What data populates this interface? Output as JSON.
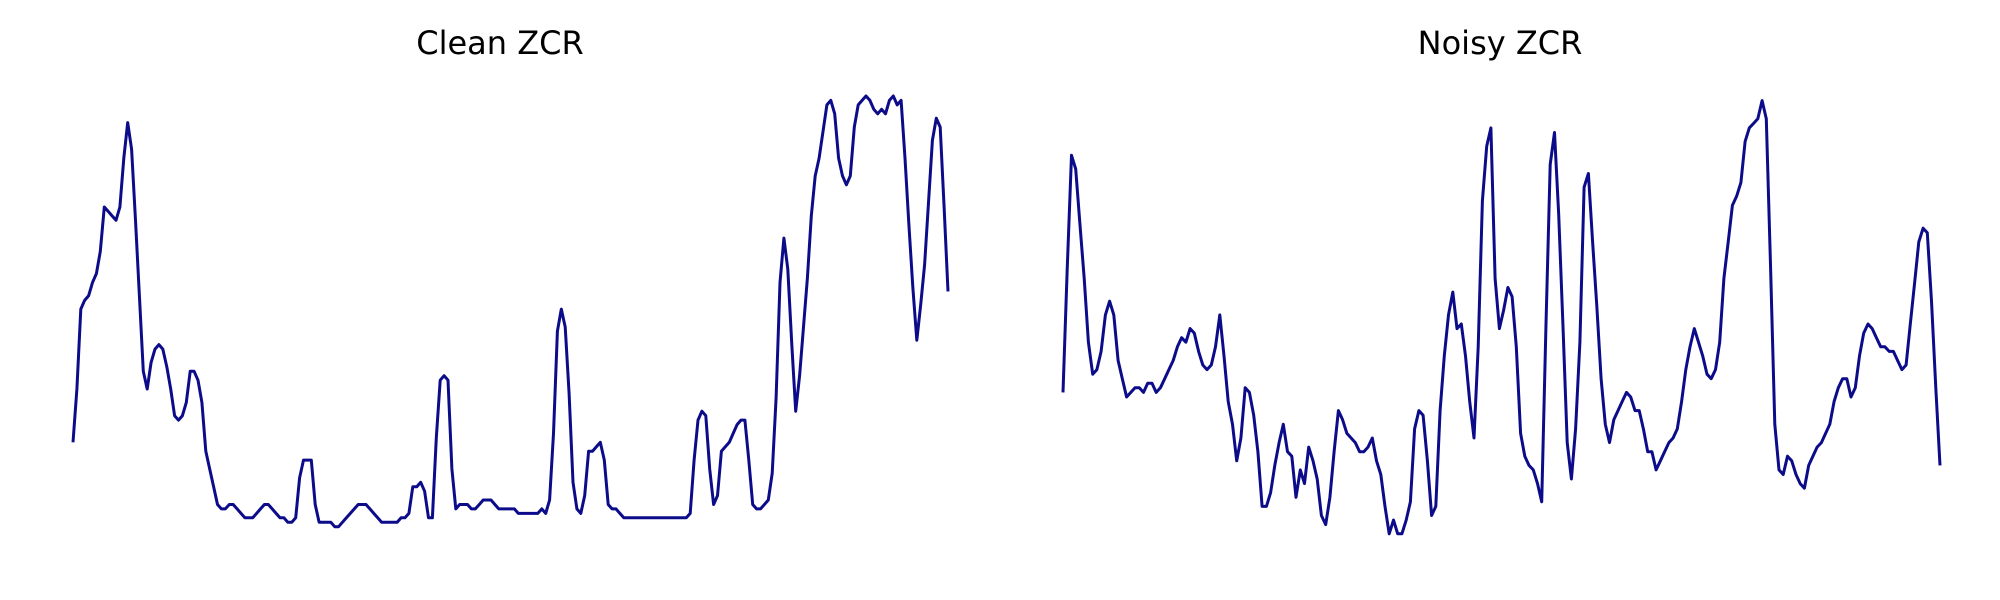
{
  "chart_data": [
    {
      "type": "line",
      "title": "Clean ZCR",
      "ylim": [
        0,
        1
      ],
      "grid": false,
      "axes_visible": false,
      "line_color": "#0c0c8a",
      "series": [
        {
          "values": [
            0.22,
            0.34,
            0.52,
            0.54,
            0.55,
            0.58,
            0.6,
            0.65,
            0.75,
            0.74,
            0.73,
            0.72,
            0.75,
            0.86,
            0.94,
            0.88,
            0.72,
            0.55,
            0.38,
            0.34,
            0.4,
            0.43,
            0.44,
            0.43,
            0.39,
            0.34,
            0.28,
            0.27,
            0.28,
            0.31,
            0.38,
            0.38,
            0.36,
            0.31,
            0.2,
            0.16,
            0.12,
            0.08,
            0.07,
            0.07,
            0.08,
            0.08,
            0.07,
            0.06,
            0.05,
            0.05,
            0.05,
            0.06,
            0.07,
            0.08,
            0.08,
            0.07,
            0.06,
            0.05,
            0.05,
            0.04,
            0.04,
            0.05,
            0.14,
            0.18,
            0.18,
            0.18,
            0.08,
            0.04,
            0.04,
            0.04,
            0.04,
            0.03,
            0.03,
            0.04,
            0.05,
            0.06,
            0.07,
            0.08,
            0.08,
            0.08,
            0.07,
            0.06,
            0.05,
            0.04,
            0.04,
            0.04,
            0.04,
            0.04,
            0.05,
            0.05,
            0.06,
            0.12,
            0.12,
            0.13,
            0.11,
            0.05,
            0.05,
            0.23,
            0.36,
            0.37,
            0.36,
            0.16,
            0.07,
            0.08,
            0.08,
            0.08,
            0.07,
            0.07,
            0.08,
            0.09,
            0.09,
            0.09,
            0.08,
            0.07,
            0.07,
            0.07,
            0.07,
            0.07,
            0.06,
            0.06,
            0.06,
            0.06,
            0.06,
            0.06,
            0.07,
            0.06,
            0.09,
            0.24,
            0.47,
            0.52,
            0.48,
            0.33,
            0.13,
            0.07,
            0.06,
            0.1,
            0.2,
            0.2,
            0.21,
            0.22,
            0.18,
            0.08,
            0.07,
            0.07,
            0.06,
            0.05,
            0.05,
            0.05,
            0.05,
            0.05,
            0.05,
            0.05,
            0.05,
            0.05,
            0.05,
            0.05,
            0.05,
            0.05,
            0.05,
            0.05,
            0.05,
            0.05,
            0.06,
            0.18,
            0.27,
            0.29,
            0.28,
            0.16,
            0.08,
            0.1,
            0.2,
            0.21,
            0.22,
            0.24,
            0.26,
            0.27,
            0.27,
            0.18,
            0.08,
            0.07,
            0.07,
            0.08,
            0.09,
            0.15,
            0.32,
            0.58,
            0.68,
            0.61,
            0.44,
            0.29,
            0.37,
            0.48,
            0.59,
            0.73,
            0.82,
            0.86,
            0.92,
            0.98,
            0.99,
            0.96,
            0.86,
            0.82,
            0.8,
            0.82,
            0.93,
            0.98,
            0.99,
            1.0,
            0.99,
            0.97,
            0.96,
            0.97,
            0.96,
            0.99,
            1.0,
            0.98,
            0.99,
            0.86,
            0.71,
            0.57,
            0.45,
            0.53,
            0.62,
            0.76,
            0.9,
            0.95,
            0.93,
            0.75,
            0.56
          ]
        }
      ]
    },
    {
      "type": "line",
      "title": "Noisy ZCR",
      "ylim": [
        0,
        1
      ],
      "grid": false,
      "axes_visible": false,
      "line_color": "#0c0c8a",
      "series": [
        {
          "values": [
            0.35,
            0.62,
            0.87,
            0.84,
            0.72,
            0.6,
            0.46,
            0.39,
            0.4,
            0.44,
            0.52,
            0.55,
            0.52,
            0.42,
            0.38,
            0.34,
            0.35,
            0.36,
            0.36,
            0.35,
            0.37,
            0.37,
            0.35,
            0.36,
            0.38,
            0.4,
            0.42,
            0.45,
            0.47,
            0.46,
            0.49,
            0.48,
            0.44,
            0.41,
            0.4,
            0.41,
            0.45,
            0.52,
            0.43,
            0.33,
            0.28,
            0.2,
            0.25,
            0.36,
            0.35,
            0.3,
            0.22,
            0.1,
            0.1,
            0.13,
            0.19,
            0.24,
            0.28,
            0.22,
            0.21,
            0.12,
            0.18,
            0.15,
            0.23,
            0.2,
            0.16,
            0.08,
            0.06,
            0.12,
            0.22,
            0.31,
            0.29,
            0.26,
            0.25,
            0.24,
            0.22,
            0.22,
            0.23,
            0.25,
            0.2,
            0.17,
            0.1,
            0.04,
            0.07,
            0.04,
            0.04,
            0.07,
            0.11,
            0.27,
            0.31,
            0.3,
            0.2,
            0.08,
            0.1,
            0.31,
            0.43,
            0.52,
            0.57,
            0.49,
            0.5,
            0.43,
            0.33,
            0.25,
            0.45,
            0.77,
            0.89,
            0.93,
            0.6,
            0.49,
            0.53,
            0.58,
            0.56,
            0.45,
            0.26,
            0.21,
            0.19,
            0.18,
            0.15,
            0.11,
            0.5,
            0.85,
            0.92,
            0.74,
            0.5,
            0.24,
            0.16,
            0.27,
            0.46,
            0.8,
            0.83,
            0.68,
            0.54,
            0.38,
            0.28,
            0.24,
            0.29,
            0.31,
            0.33,
            0.35,
            0.34,
            0.31,
            0.31,
            0.27,
            0.22,
            0.22,
            0.18,
            0.2,
            0.22,
            0.24,
            0.25,
            0.27,
            0.33,
            0.4,
            0.45,
            0.49,
            0.46,
            0.43,
            0.39,
            0.38,
            0.4,
            0.46,
            0.6,
            0.68,
            0.76,
            0.78,
            0.81,
            0.9,
            0.93,
            0.94,
            0.95,
            0.99,
            0.95,
            0.63,
            0.28,
            0.18,
            0.17,
            0.21,
            0.2,
            0.17,
            0.15,
            0.14,
            0.19,
            0.21,
            0.23,
            0.24,
            0.26,
            0.28,
            0.33,
            0.36,
            0.38,
            0.38,
            0.34,
            0.36,
            0.43,
            0.48,
            0.5,
            0.49,
            0.47,
            0.45,
            0.45,
            0.44,
            0.44,
            0.42,
            0.4,
            0.41,
            0.5,
            0.59,
            0.68,
            0.71,
            0.7,
            0.55,
            0.36,
            0.19
          ]
        }
      ]
    }
  ]
}
